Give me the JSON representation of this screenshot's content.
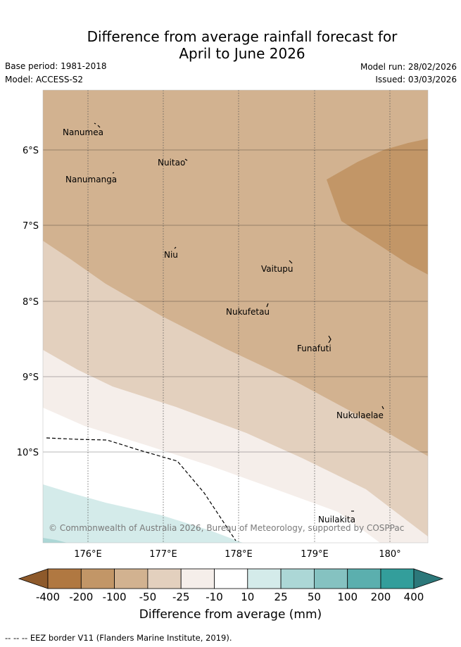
{
  "title": {
    "line1": "Difference from average rainfall forecast for",
    "line2": "April to June 2026"
  },
  "meta": {
    "base_period": "Base period: 1981-2018",
    "model": "Model: ACCESS-S2",
    "model_run": "Model run: 28/02/2026",
    "issued": "Issued: 03/03/2026"
  },
  "map": {
    "lat_labels": [
      "6°S",
      "7°S",
      "8°S",
      "9°S",
      "10°S"
    ],
    "lon_labels": [
      "176°E",
      "177°E",
      "178°E",
      "179°E",
      "180°"
    ],
    "places": [
      "Nanumea",
      "Nuitao",
      "Nanumanga",
      "Niu",
      "Vaitupu",
      "Nukufetau",
      "Funafuti",
      "Nukulaelae",
      "Nuilakita"
    ],
    "copyright": "© Commonwealth of Australia 2026, Bureau of Meteorology, supported by COSPPac"
  },
  "legend": {
    "title": "Difference from average (mm)",
    "ticks": [
      "-400",
      "-200",
      "-100",
      "-50",
      "-25",
      "-10",
      "10",
      "25",
      "50",
      "100",
      "200",
      "400"
    ],
    "colors": {
      "lt_400": "#8e5a2b",
      "b_400_200": "#b07841",
      "b_200_100": "#c29667",
      "b_100_50": "#d2b290",
      "b_50_25": "#e3d0be",
      "b_25_10": "#f5eeea",
      "b_10_10": "#ffffff",
      "b_10_25": "#d4ebea",
      "b_25_50": "#acd7d6",
      "b_50_100": "#85c2c1",
      "b_100_200": "#5bafae",
      "b_200_400": "#339e9b",
      "gt_400": "#2c787a"
    }
  },
  "footer": {
    "eez_note": "--  --  -- EEZ border V11 (Flanders Marine Institute, 2019)."
  }
}
